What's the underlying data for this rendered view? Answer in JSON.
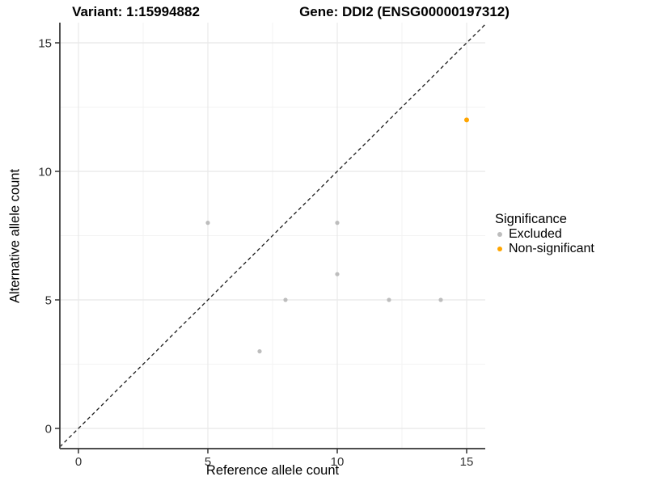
{
  "chart_data": {
    "type": "scatter",
    "title_left": "Variant: 1:15994882",
    "title_right": "Gene: DDI2 (ENSG00000197312)",
    "xlabel": "Reference allele count",
    "ylabel": "Alternative allele count",
    "xticks": [
      0,
      5,
      10,
      15
    ],
    "yticks": [
      0,
      5,
      10,
      15
    ],
    "x_minor_gridlines": [
      2.5,
      7.5,
      12.5
    ],
    "y_minor_gridlines": [
      2.5,
      7.5,
      12.5
    ],
    "xlim": [
      -0.75,
      15.75
    ],
    "ylim": [
      -0.79,
      15.79
    ],
    "grid": "major and minor, light gray on white",
    "identity_line": "dashed black y = x",
    "legend_title": "Significance",
    "legend_position": "right",
    "series": [
      {
        "name": "Excluded",
        "color": "#BDBDBD",
        "points": [
          [
            5,
            8
          ],
          [
            7,
            3
          ],
          [
            8,
            5
          ],
          [
            10,
            6
          ],
          [
            10,
            8
          ],
          [
            12,
            5
          ],
          [
            14,
            5
          ]
        ]
      },
      {
        "name": "Non-significant",
        "color": "#FFA500",
        "points": [
          [
            15,
            12
          ]
        ]
      }
    ]
  },
  "colors": {
    "background": "#FFFFFF",
    "grid_major": "#E8E8E8",
    "grid_minor": "#F3F3F3",
    "axis_line": "#4D4D4D",
    "tick_mark": "#333333",
    "tick_label": "#333333",
    "dashed_line": "#1A1A1A",
    "excluded_point": "#BDBDBD",
    "non_significant_point": "#FFA500"
  }
}
